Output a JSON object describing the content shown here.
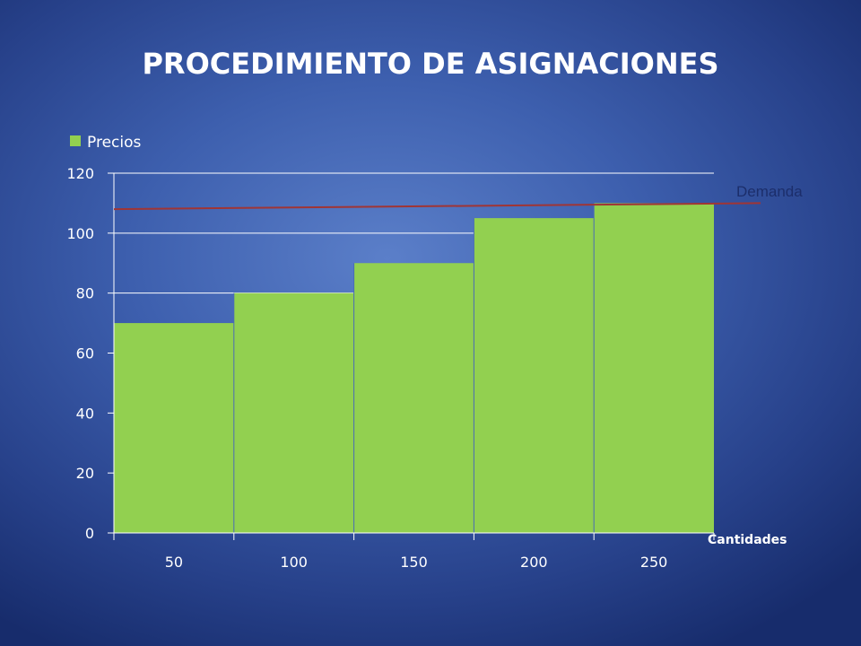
{
  "title": "PROCEDIMIENTO DE ASIGNACIONES",
  "chart_data": {
    "type": "bar",
    "categories": [
      "50",
      "100",
      "150",
      "200",
      "250"
    ],
    "series": [
      {
        "name": "Precios",
        "values": [
          70,
          80,
          90,
          105,
          110
        ]
      }
    ],
    "ylim": [
      0,
      120
    ],
    "yticks": [
      "0",
      "20",
      "40",
      "60",
      "80",
      "100",
      "120"
    ],
    "xlabel": "Cantidades",
    "ylabel": "",
    "grid": true,
    "legend": {
      "placement": "top-left",
      "entries": [
        "Precios"
      ]
    },
    "demand_line": {
      "label": "Demanda",
      "start_value": 108,
      "end_value": 110
    },
    "colors": {
      "bar": "#92d050",
      "demand": "#a03535",
      "grid": "#ffffff"
    }
  }
}
